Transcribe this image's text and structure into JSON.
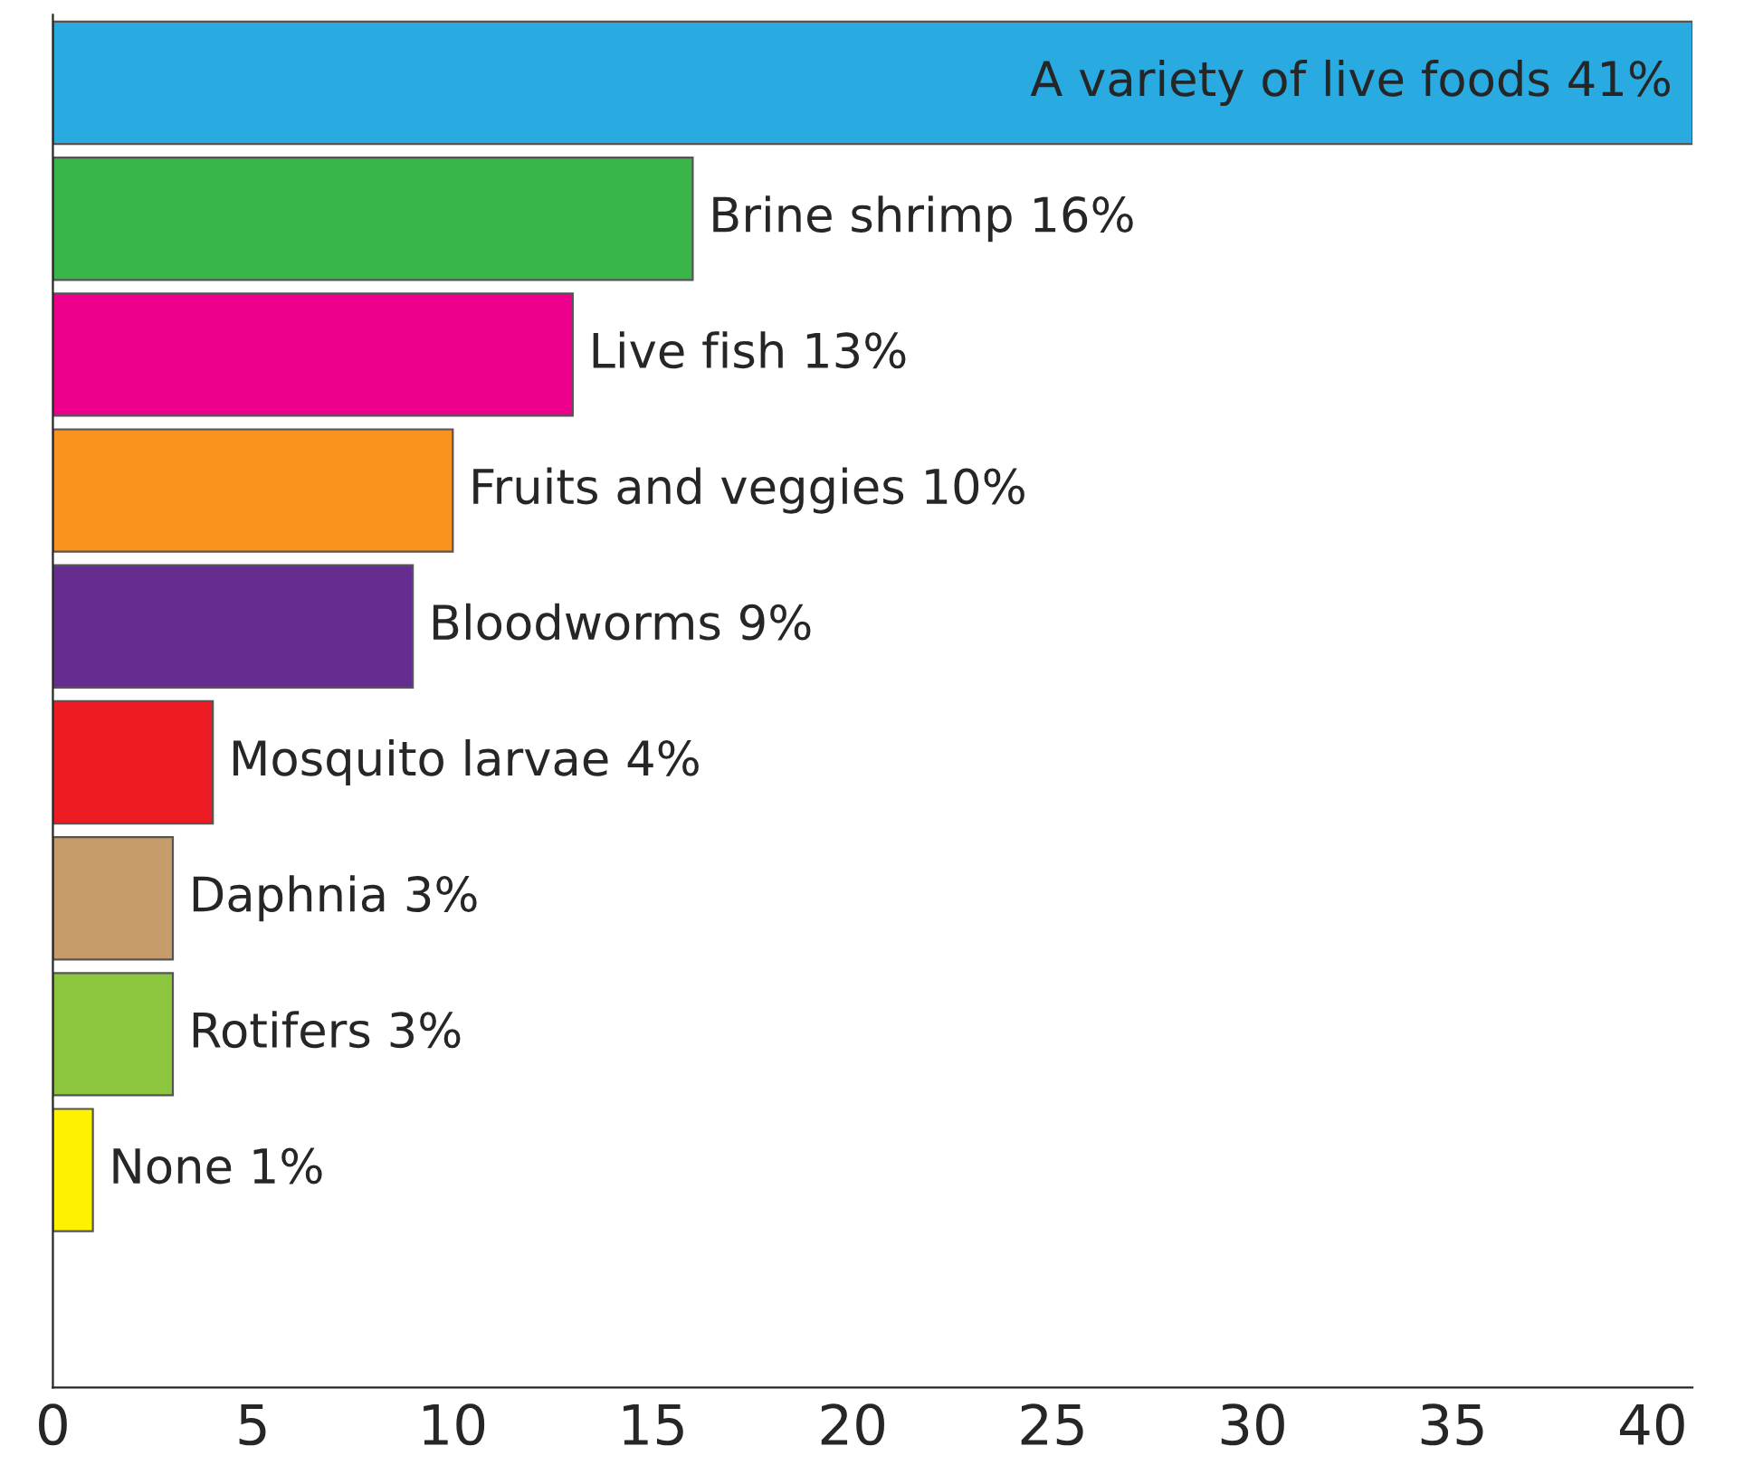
{
  "chart_data": {
    "type": "bar",
    "orientation": "horizontal",
    "categories": [
      "A variety of live foods",
      "Brine shrimp",
      "Live fish",
      "Fruits and veggies",
      "Bloodworms",
      "Mosquito larvae",
      "Daphnia",
      "Rotifers",
      "None"
    ],
    "values": [
      41,
      16,
      13,
      10,
      9,
      4,
      3,
      3,
      1
    ],
    "value_labels": [
      "41%",
      "16%",
      "13%",
      "10%",
      "9%",
      "4%",
      "3%",
      "3%",
      "1%"
    ],
    "colors": [
      "#29abe2",
      "#39b54a",
      "#ec008c",
      "#f7931e",
      "#662d91",
      "#ed1c24",
      "#c69c6d",
      "#8cc63f",
      "#fff200"
    ],
    "xlim": [
      0,
      41
    ],
    "xticks": [
      0,
      5,
      10,
      15,
      20,
      25,
      30,
      35,
      40
    ],
    "grid": false,
    "legend": false
  }
}
